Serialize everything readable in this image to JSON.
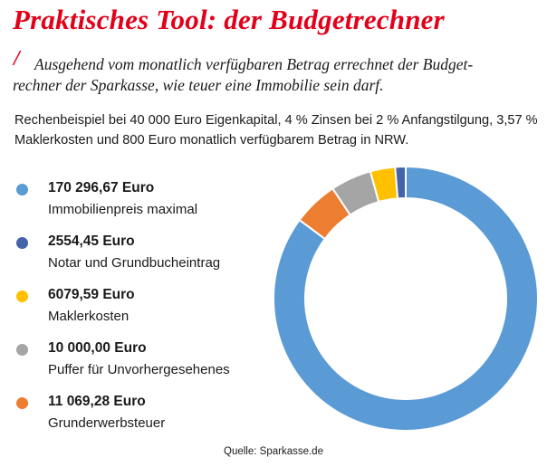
{
  "title": "Praktisches Tool: der Budgetrechner",
  "slash": "/",
  "subtitle_line1": "Ausgehend vom monatlich verfügbaren Betrag errechnet der Budget-",
  "subtitle_line2": "rechner der Sparkasse, wie teuer eine Immobilie sein darf.",
  "note": "Rechenbeispiel bei 40 000 Euro Eigenkapital, 4 % Zinsen bei 2 % Anfangstilgung, 3,57 % Maklerkosten und 800 Euro monatlich verfügbarem Betrag in NRW.",
  "source": "Quelle: Sparkasse.de",
  "legend": [
    {
      "value": "170 296,67 Euro",
      "label": "Immobilienpreis maximal",
      "color": "#5b9bd5"
    },
    {
      "value": "2554,45 Euro",
      "label": "Notar und Grundbucheintrag",
      "color": "#4463a8"
    },
    {
      "value": "6079,59 Euro",
      "label": "Maklerkosten",
      "color": "#ffc000"
    },
    {
      "value": "10 000,00 Euro",
      "label": "Puffer für Unvorhergesehenes",
      "color": "#a5a5a5"
    },
    {
      "value": "11 069,28 Euro",
      "label": "Grunderwerbsteuer",
      "color": "#ed7d31"
    }
  ],
  "chart_data": {
    "type": "pie",
    "style": "donut",
    "start": "top",
    "direction": "clockwise",
    "slices": [
      {
        "name": "Immobilienpreis maximal",
        "value": 170296.67,
        "color": "#5b9bd5"
      },
      {
        "name": "Grunderwerbsteuer",
        "value": 11069.28,
        "color": "#ed7d31"
      },
      {
        "name": "Puffer für Unvorhergesehenes",
        "value": 10000.0,
        "color": "#a5a5a5"
      },
      {
        "name": "Maklerkosten",
        "value": 6079.59,
        "color": "#ffc000"
      },
      {
        "name": "Notar und Grundbucheintrag",
        "value": 2554.45,
        "color": "#4463a8"
      }
    ]
  }
}
